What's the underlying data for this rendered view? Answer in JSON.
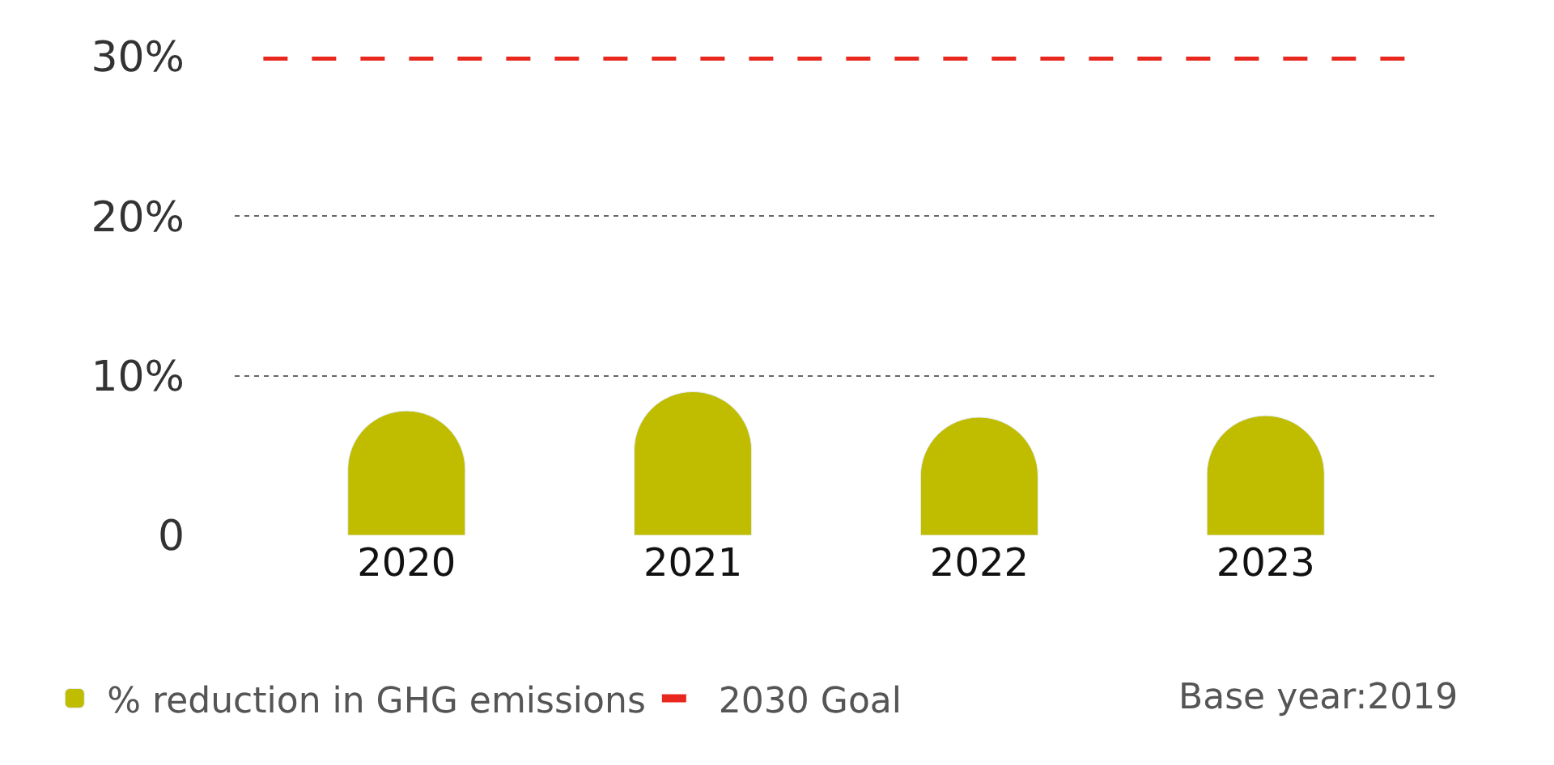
{
  "chart_data": {
    "type": "bar",
    "categories": [
      "2020",
      "2021",
      "2022",
      "2023"
    ],
    "series": [
      {
        "name": "% reduction in GHG emissions",
        "color": "#c0bc00",
        "values": [
          7.8,
          9.0,
          7.4,
          7.5
        ]
      }
    ],
    "ylim": [
      0,
      30
    ],
    "yticks": [
      0,
      {
        "value": 10,
        "label": "10%"
      },
      {
        "value": 20,
        "label": "20%"
      },
      {
        "value": 30,
        "label": "30%"
      }
    ],
    "grid": "y",
    "legend": "bottom",
    "ref_lines": [
      {
        "axis": "y",
        "value": 30,
        "label": "2030 Goal",
        "color": "#e8281e",
        "line_style": "dashed"
      }
    ],
    "annotations": [
      "Base year:2019"
    ]
  }
}
